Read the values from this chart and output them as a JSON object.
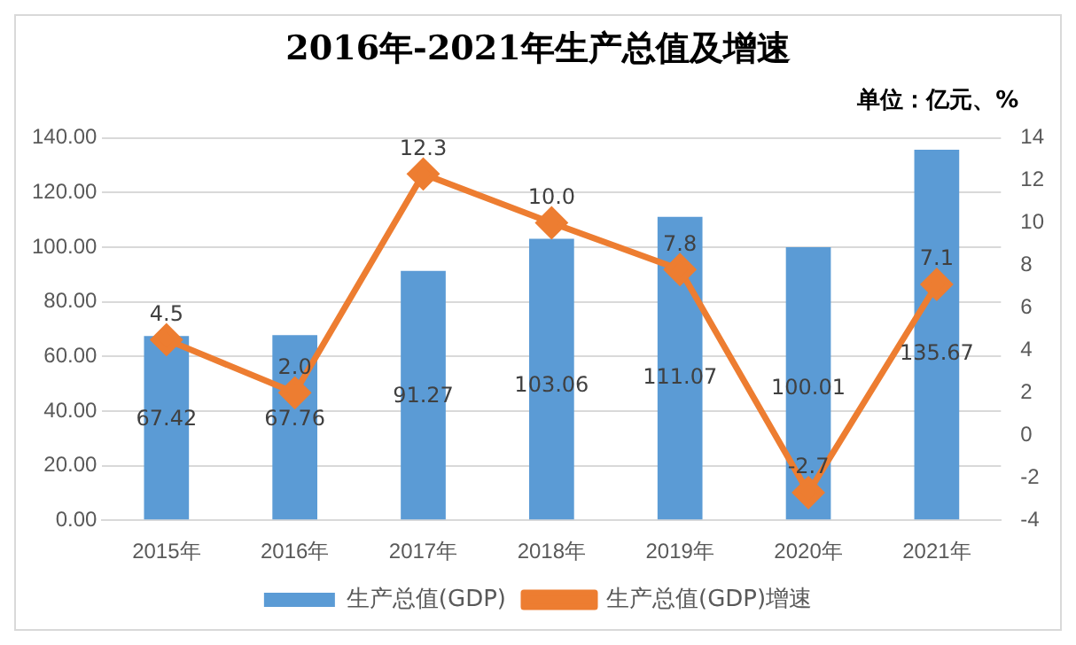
{
  "chart_data": {
    "type": "bar",
    "title": "2016年-2021年生产总值及增速",
    "annotations": [
      "单位：亿元、%"
    ],
    "categories": [
      "2015年",
      "2016年",
      "2017年",
      "2018年",
      "2019年",
      "2020年",
      "2021年"
    ],
    "series": [
      {
        "name": "生产总值(GDP)",
        "color": "#5b9bd5",
        "values": [
          67.42,
          67.76,
          91.27,
          103.06,
          111.07,
          100.01,
          135.67
        ]
      },
      {
        "name": "生产总值(GDP)增速",
        "type": "line",
        "axis": "y2",
        "color": "#ed7d31",
        "marker": "diamond",
        "values": [
          4.5,
          2.0,
          12.3,
          10.0,
          7.8,
          -2.7,
          7.1
        ],
        "value_labels": [
          "4.5",
          "2.0",
          "12.3",
          "10.0",
          "7.8",
          "-2.7",
          "7.1"
        ]
      }
    ],
    "ylim": [
      0,
      140
    ],
    "yticks": [
      {
        "value": 0,
        "label": "0.00"
      },
      {
        "value": 20,
        "label": "20.00"
      },
      {
        "value": 40,
        "label": "40.00"
      },
      {
        "value": 60,
        "label": "60.00"
      },
      {
        "value": 80,
        "label": "80.00"
      },
      {
        "value": 100,
        "label": "100.00"
      },
      {
        "value": 120,
        "label": "120.00"
      },
      {
        "value": 140,
        "label": "140.00"
      }
    ],
    "y2lim": [
      -4,
      14
    ],
    "y2ticks": [
      -4,
      -2,
      0,
      2,
      4,
      6,
      8,
      10,
      12,
      14
    ],
    "data_labels": true,
    "grid": "y",
    "legend": "bottom"
  }
}
